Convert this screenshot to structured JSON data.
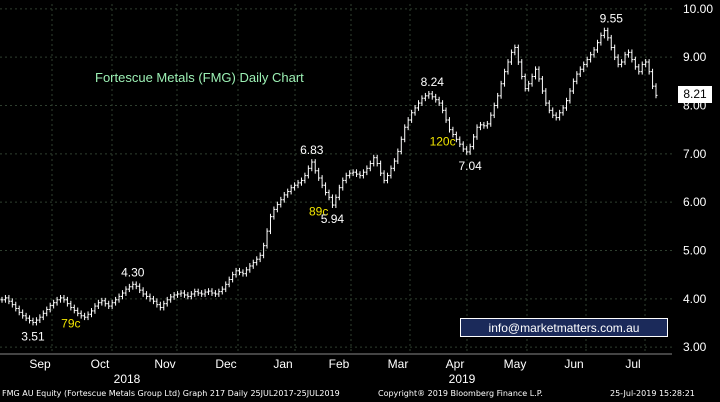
{
  "chart_data": {
    "type": "line",
    "title": "Fortescue Metals (FMG) Daily Chart",
    "ylim": [
      2.9,
      10.1
    ],
    "y_ticks": [
      "3.00",
      "4.00",
      "5.00",
      "6.00",
      "7.00",
      "8.00",
      "9.00",
      "10.00"
    ],
    "y_tick_values": [
      3,
      4,
      5,
      6,
      7,
      8,
      9,
      10
    ],
    "month_labels": [
      "Sep",
      "Oct",
      "Nov",
      "Dec",
      "Jan",
      "Feb",
      "Mar",
      "Apr",
      "May",
      "Jun",
      "Jul"
    ],
    "year_labels": [
      "2018",
      "2019"
    ],
    "grid": true,
    "series": [
      {
        "values": [
          3.98,
          4.02,
          3.95,
          3.88,
          3.8,
          3.72,
          3.65,
          3.6,
          3.55,
          3.51,
          3.56,
          3.62,
          3.7,
          3.78,
          3.86,
          3.92,
          3.98,
          4.02,
          3.98,
          3.9,
          3.82,
          3.76,
          3.7,
          3.65,
          3.62,
          3.68,
          3.75,
          3.85,
          3.92,
          3.96,
          3.9,
          3.85,
          3.92,
          3.98,
          4.05,
          4.12,
          4.2,
          4.25,
          4.3,
          4.26,
          4.18,
          4.1,
          4.05,
          4.0,
          3.95,
          3.88,
          3.82,
          3.9,
          3.98,
          4.04,
          4.08,
          4.1,
          4.12,
          4.08,
          4.05,
          4.1,
          4.15,
          4.12,
          4.1,
          4.14,
          4.16,
          4.12,
          4.1,
          4.15,
          4.2,
          4.3,
          4.4,
          4.5,
          4.58,
          4.55,
          4.52,
          4.6,
          4.68,
          4.75,
          4.82,
          4.9,
          5.1,
          5.4,
          5.7,
          5.85,
          5.95,
          6.05,
          6.15,
          6.22,
          6.3,
          6.35,
          6.4,
          6.45,
          6.55,
          6.7,
          6.83,
          6.65,
          6.5,
          6.35,
          6.2,
          6.1,
          5.94,
          6.1,
          6.3,
          6.45,
          6.55,
          6.6,
          6.62,
          6.58,
          6.55,
          6.62,
          6.7,
          6.8,
          6.92,
          6.8,
          6.6,
          6.45,
          6.55,
          6.7,
          6.85,
          7.05,
          7.3,
          7.55,
          7.7,
          7.85,
          7.95,
          8.05,
          8.15,
          8.2,
          8.24,
          8.18,
          8.12,
          8.05,
          7.9,
          7.7,
          7.5,
          7.4,
          7.3,
          7.2,
          7.1,
          7.04,
          7.15,
          7.35,
          7.55,
          7.6,
          7.58,
          7.62,
          7.8,
          8.0,
          8.2,
          8.45,
          8.7,
          8.9,
          9.1,
          9.2,
          8.9,
          8.6,
          8.35,
          8.45,
          8.6,
          8.75,
          8.55,
          8.3,
          8.05,
          7.9,
          7.8,
          7.75,
          7.85,
          7.95,
          8.1,
          8.3,
          8.5,
          8.65,
          8.75,
          8.85,
          8.95,
          9.05,
          9.15,
          9.3,
          9.45,
          9.55,
          9.4,
          9.2,
          9.0,
          8.85,
          8.9,
          9.05,
          9.1,
          8.95,
          8.8,
          8.7,
          8.85,
          8.9,
          8.7,
          8.4,
          8.21
        ]
      }
    ],
    "annotations": [
      {
        "text": "3.51",
        "x": 9,
        "y": 3.51,
        "color": "#ffffff",
        "pos": "below"
      },
      {
        "text": "79c",
        "x": 20,
        "y": 3.78,
        "color": "#f2e600",
        "pos": "below"
      },
      {
        "text": "4.30",
        "x": 38,
        "y": 4.3,
        "color": "#ffffff",
        "pos": "above"
      },
      {
        "text": "6.83",
        "x": 90,
        "y": 6.83,
        "color": "#ffffff",
        "pos": "above"
      },
      {
        "text": "89c",
        "x": 92,
        "y": 6.1,
        "color": "#f2e600",
        "pos": "below"
      },
      {
        "text": "5.94",
        "x": 96,
        "y": 5.94,
        "color": "#ffffff",
        "pos": "below"
      },
      {
        "text": "8.24",
        "x": 125,
        "y": 8.24,
        "color": "#ffffff",
        "pos": "above"
      },
      {
        "text": "120c",
        "x": 128,
        "y": 7.55,
        "color": "#f2e600",
        "pos": "below"
      },
      {
        "text": "7.04",
        "x": 136,
        "y": 7.04,
        "color": "#ffffff",
        "pos": "below"
      },
      {
        "text": "9.55",
        "x": 177,
        "y": 9.55,
        "color": "#ffffff",
        "pos": "above"
      }
    ],
    "last_value": "8.21",
    "line_color": "#ffffff",
    "grid_color": "#2f3f2f"
  },
  "email": "info@marketmatters.com.au",
  "footer": {
    "left": "FMG AU Equity (Fortescue Metals Group Ltd) Graph 217  Daily 25JUL2017-25JUL2019",
    "middle": "Copyright® 2019 Bloomberg Finance L.P.",
    "right": "25-Jul-2019 15:28:21"
  }
}
